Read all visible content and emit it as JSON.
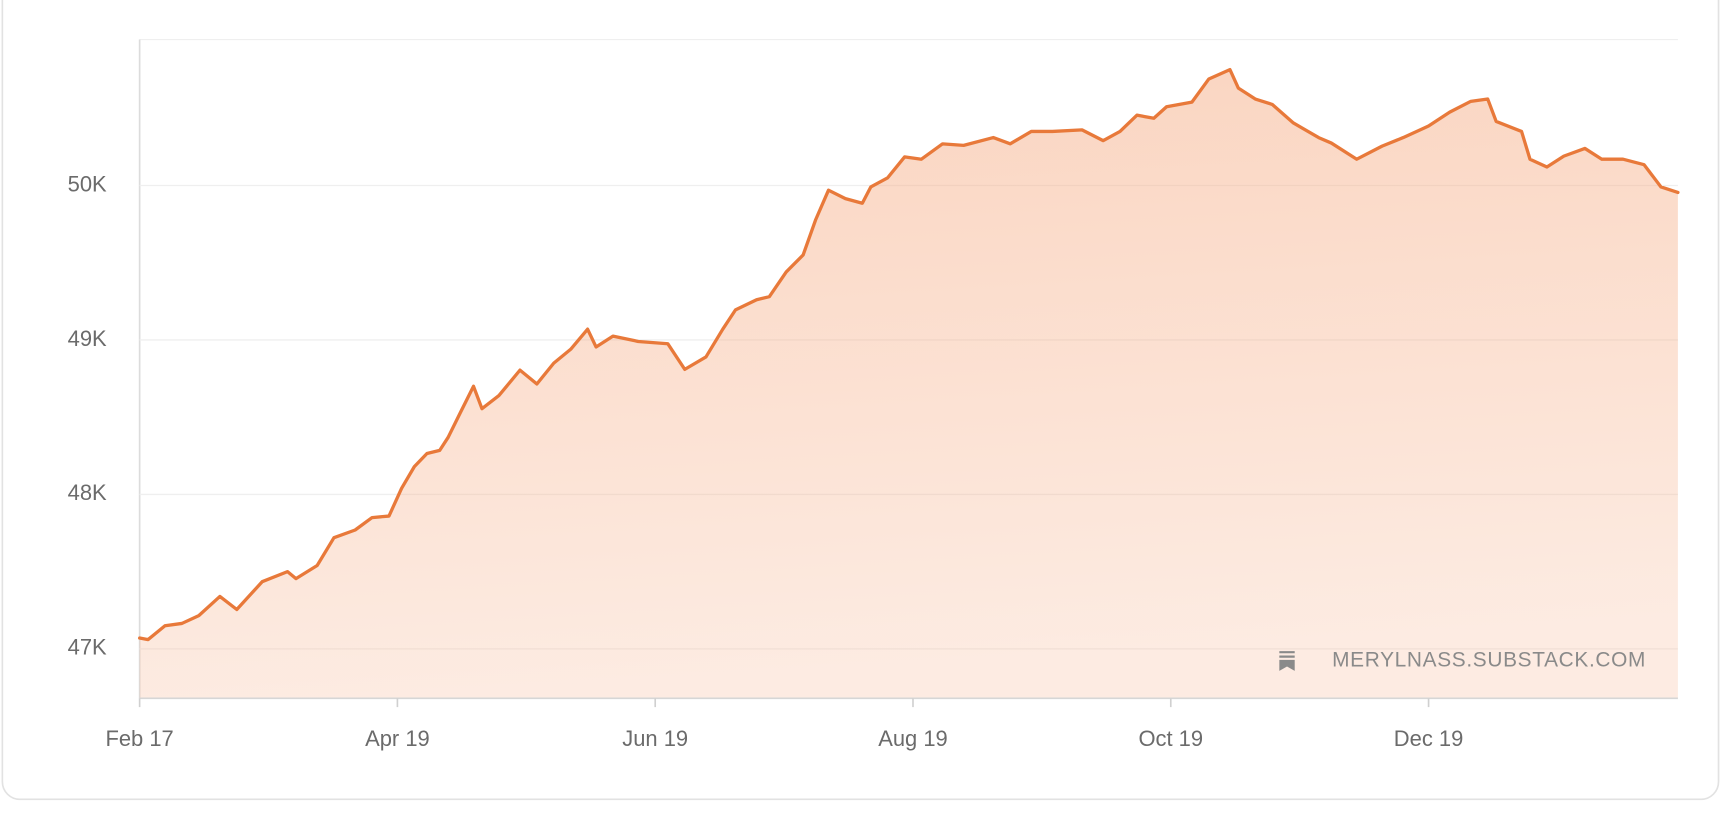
{
  "chart_data": {
    "type": "area",
    "x": [
      0,
      2,
      6,
      10,
      14,
      19,
      23,
      29,
      35,
      37,
      42,
      46,
      51,
      55,
      59,
      62,
      65,
      68,
      71,
      73,
      76,
      79,
      81,
      85,
      90,
      94,
      98,
      102,
      106,
      108,
      112,
      118,
      125,
      129,
      134,
      138,
      141,
      146,
      149,
      153,
      157,
      160,
      163,
      167,
      171,
      173,
      177,
      181,
      185,
      190,
      195,
      202,
      206,
      211,
      216,
      223,
      228,
      232,
      236,
      240,
      243,
      249,
      253,
      258,
      260,
      264,
      268,
      273,
      279,
      282,
      288,
      294,
      299,
      305,
      310,
      315,
      319,
      321,
      327,
      329,
      333,
      337,
      342,
      346,
      351,
      356,
      360,
      364
    ],
    "series": [
      {
        "color": "#e8793a",
        "values": [
          47070,
          47060,
          47150,
          47165,
          47215,
          47340,
          47255,
          47435,
          47500,
          47455,
          47540,
          47720,
          47770,
          47850,
          47860,
          48040,
          48180,
          48265,
          48285,
          48370,
          48535,
          48700,
          48555,
          48640,
          48805,
          48715,
          48850,
          48940,
          49070,
          48955,
          49025,
          48990,
          48975,
          48810,
          48890,
          49070,
          49195,
          49260,
          49280,
          49440,
          49550,
          49780,
          49970,
          49915,
          49885,
          49990,
          50050,
          50185,
          50170,
          50270,
          50260,
          50310,
          50270,
          50350,
          50350,
          50360,
          50290,
          50350,
          50455,
          50435,
          50510,
          50540,
          50690,
          50750,
          50630,
          50560,
          50525,
          50405,
          50310,
          50275,
          50170,
          50255,
          50310,
          50385,
          50475,
          50545,
          50560,
          50415,
          50350,
          50170,
          50120,
          50190,
          50240,
          50170,
          50170,
          50135,
          49990,
          49955
        ]
      }
    ],
    "xlim": [
      0,
      364
    ],
    "xticks": [
      {
        "value": 0,
        "label": "Feb 17"
      },
      {
        "value": 61,
        "label": "Apr 19"
      },
      {
        "value": 122,
        "label": "Jun 19"
      },
      {
        "value": 183,
        "label": "Aug 19"
      },
      {
        "value": 244,
        "label": "Oct 19"
      },
      {
        "value": 305,
        "label": "Dec 19"
      }
    ],
    "ylim": [
      46680,
      50945
    ],
    "yticks": [
      {
        "value": 47000,
        "label": "47K"
      },
      {
        "value": 48000,
        "label": "48K"
      },
      {
        "value": 49000,
        "label": "49K"
      },
      {
        "value": 50000,
        "label": "50K"
      }
    ],
    "grid": true,
    "watermark": "MERYLNASS.SUBSTACK.COM"
  }
}
